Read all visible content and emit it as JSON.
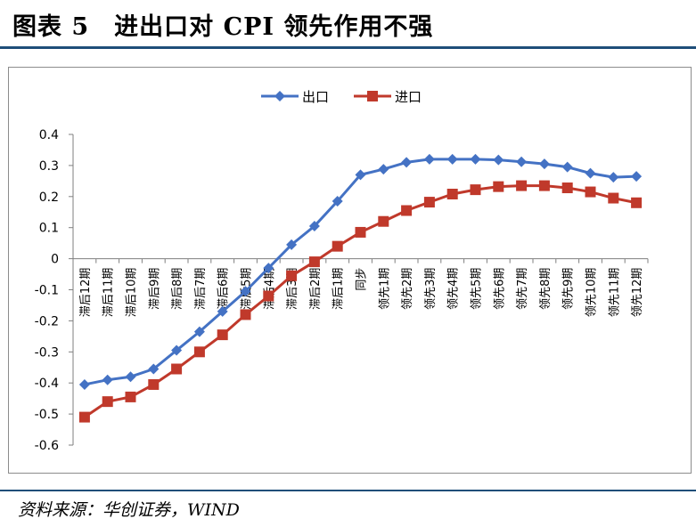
{
  "header": {
    "title": "图表 5　进出口对 CPI 领先作用不强"
  },
  "footer": {
    "source": "资料来源：华创证券，WIND"
  },
  "chart_data": {
    "type": "line",
    "title": "",
    "xlabel": "",
    "ylabel": "",
    "ylim": [
      -0.6,
      0.4
    ],
    "yticks": [
      0.4,
      0.3,
      0.2,
      0.1,
      0,
      -0.1,
      -0.2,
      -0.3,
      -0.4,
      -0.5,
      -0.6
    ],
    "ytick_labels": [
      "0.4",
      "0.3",
      "0.2",
      "0.1",
      "0",
      "-0.1",
      "-0.2",
      "-0.3",
      "-0.4",
      "-0.5",
      "-0.6"
    ],
    "grid": false,
    "legend_position": "top-center",
    "categories": [
      "滞后12期",
      "滞后11期",
      "滞后10期",
      "滞后9期",
      "滞后8期",
      "滞后7期",
      "滞后6期",
      "滞后5期",
      "滞后4期",
      "滞后3期",
      "滞后2期",
      "滞后1期",
      "同步",
      "领先1期",
      "领先2期",
      "领先3期",
      "领先4期",
      "领先5期",
      "领先6期",
      "领先7期",
      "领先8期",
      "领先9期",
      "领先10期",
      "领先11期",
      "领先12期"
    ],
    "series": [
      {
        "name": "出口",
        "color": "#4472c4",
        "marker": "diamond",
        "values": [
          -0.405,
          -0.39,
          -0.38,
          -0.355,
          -0.295,
          -0.235,
          -0.17,
          -0.105,
          -0.03,
          0.045,
          0.105,
          0.185,
          0.27,
          0.288,
          0.31,
          0.32,
          0.32,
          0.32,
          0.318,
          0.312,
          0.305,
          0.295,
          0.275,
          0.262,
          0.265
        ]
      },
      {
        "name": "进口",
        "color": "#c0392b",
        "marker": "square",
        "values": [
          -0.51,
          -0.46,
          -0.445,
          -0.405,
          -0.355,
          -0.3,
          -0.245,
          -0.18,
          -0.12,
          -0.055,
          -0.01,
          0.04,
          0.085,
          0.12,
          0.155,
          0.182,
          0.208,
          0.222,
          0.232,
          0.235,
          0.235,
          0.228,
          0.215,
          0.195,
          0.18
        ]
      }
    ]
  }
}
